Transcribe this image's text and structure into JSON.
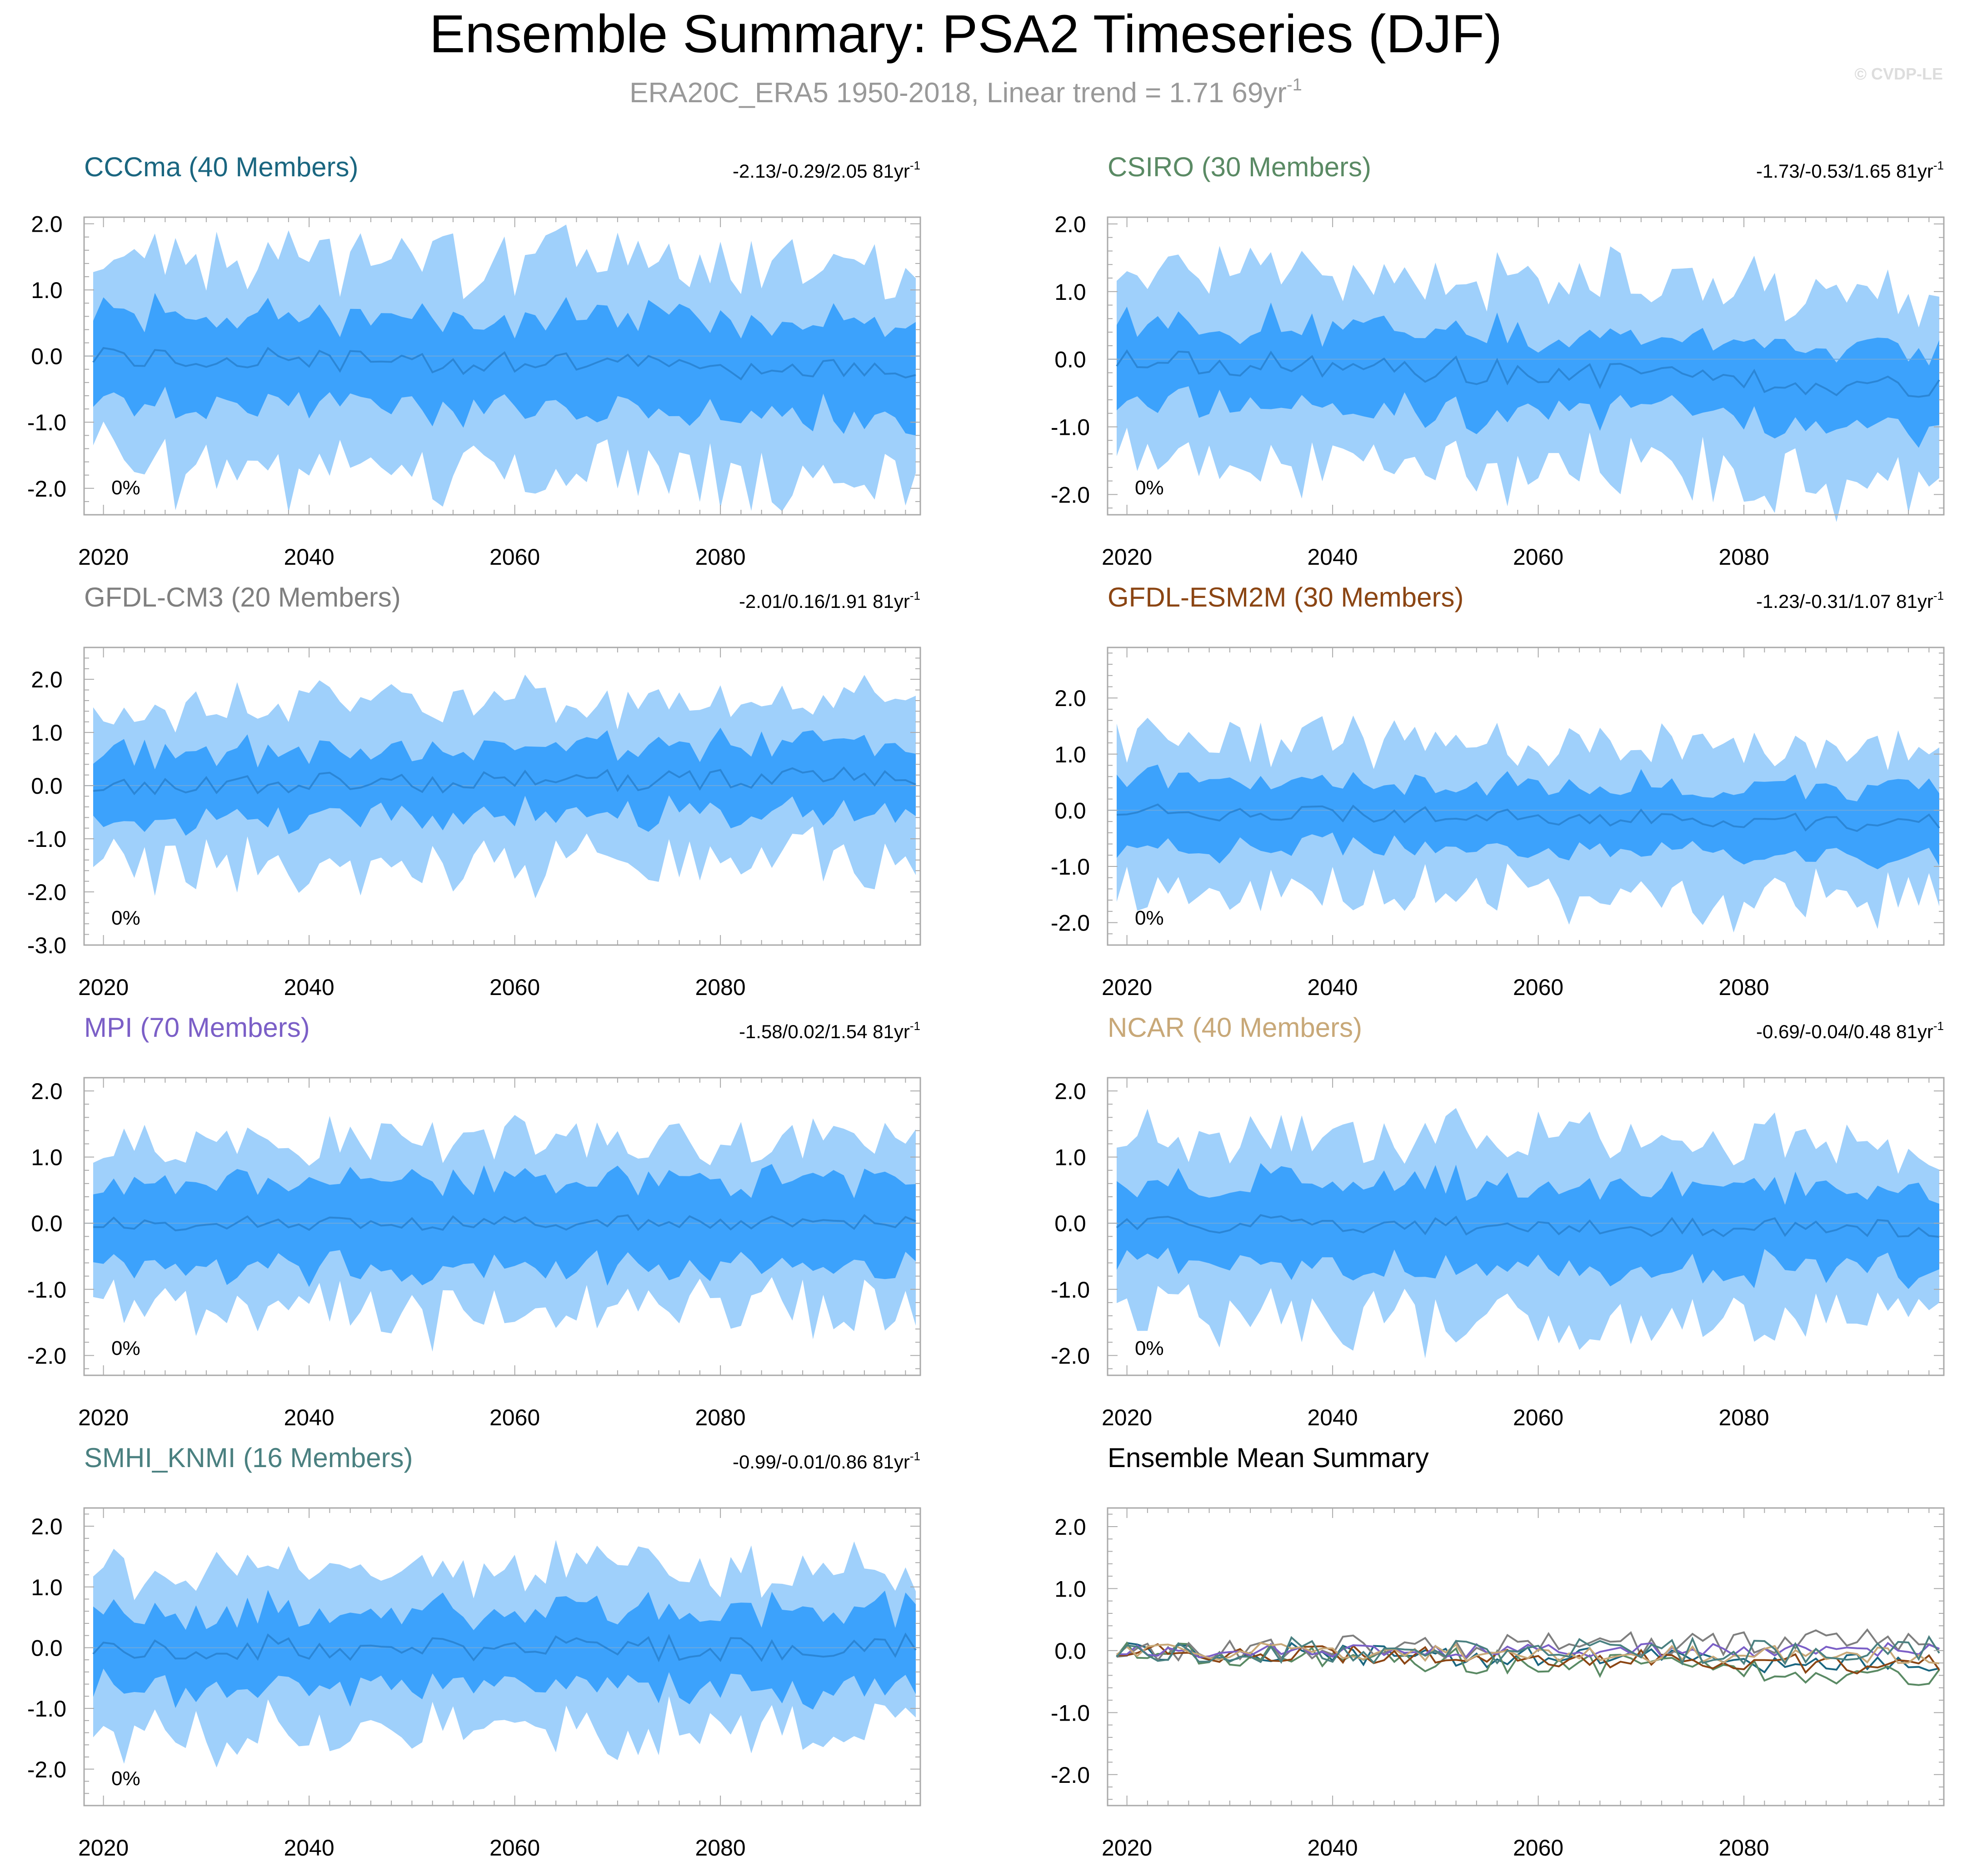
{
  "header": {
    "title": "Ensemble Summary: PSA2 Timeseries (DJF)",
    "subtitle_main": "ERA20C_ERA5 1950-2018, Linear trend = 1.71 69yr",
    "subtitle_sup": "-1",
    "copyright": "© CVDP-LE"
  },
  "colors": {
    "outer_band": "#9fd0fb",
    "inner_band": "#3ca2fc",
    "mean_line": "#2b86d6",
    "frame": "#aaaaaa",
    "text": "#000000"
  },
  "panels": [
    {
      "id": "CCCma",
      "title": "CCCma (40 Members)",
      "title_color": "#1a6680",
      "trend": "-2.13/-0.29/2.05 81yr",
      "trend_sup": "-1",
      "pct": "0%",
      "ylim": [
        -2.4,
        2.1
      ],
      "yticks": [
        "2.0",
        "1.0",
        "0.0",
        "-1.0",
        "-2.0"
      ],
      "ytick_values": [
        2,
        1,
        0,
        -1,
        -2
      ],
      "seed": 11,
      "out": 1.6,
      "inn": 0.7,
      "mean_amp": 0.18,
      "trend_slope": -0.003
    },
    {
      "id": "CSIRO",
      "title": "CSIRO (30 Members)",
      "title_color": "#5a8a64",
      "trend": "-1.73/-0.53/1.65 81yr",
      "trend_sup": "-1",
      "pct": "0%",
      "ylim": [
        -2.3,
        2.1
      ],
      "yticks": [
        "2.0",
        "1.0",
        "0.0",
        "-1.0",
        "-2.0"
      ],
      "ytick_values": [
        2,
        1,
        0,
        -1,
        -2
      ],
      "seed": 23,
      "out": 1.4,
      "inn": 0.6,
      "mean_amp": 0.2,
      "trend_slope": -0.005
    },
    {
      "id": "GFDL-CM3",
      "title": "GFDL-CM3 (20 Members)",
      "title_color": "#7f7f7f",
      "trend": "-2.01/0.16/1.91 81yr",
      "trend_sup": "-1",
      "pct": "0%",
      "ylim": [
        -3.0,
        2.6
      ],
      "yticks": [
        "2.0",
        "1.0",
        "0.0",
        "-1.0",
        "-2.0",
        "-3.0"
      ],
      "ytick_values": [
        2,
        1,
        0,
        -1,
        -2,
        -3
      ],
      "seed": 37,
      "out": 1.5,
      "inn": 0.65,
      "mean_amp": 0.2,
      "trend_slope": 0.002
    },
    {
      "id": "GFDL-ESM2M",
      "title": "GFDL-ESM2M (30 Members)",
      "title_color": "#8b4513",
      "trend": "-1.23/-0.31/1.07 81yr",
      "trend_sup": "-1",
      "pct": "0%",
      "ylim": [
        -2.4,
        2.9
      ],
      "yticks": [
        "2.0",
        "1.0",
        "0.0",
        "-1.0",
        "-2.0"
      ],
      "ytick_values": [
        2,
        1,
        0,
        -1,
        -2
      ],
      "seed": 41,
      "out": 1.3,
      "inn": 0.6,
      "mean_amp": 0.16,
      "trend_slope": -0.003
    },
    {
      "id": "MPI",
      "title": "MPI (70 Members)",
      "title_color": "#7b5fc7",
      "trend": "-1.58/0.02/1.54 81yr",
      "trend_sup": "-1",
      "pct": "0%",
      "ylim": [
        -2.3,
        2.2
      ],
      "yticks": [
        "2.0",
        "1.0",
        "0.0",
        "-1.0",
        "-2.0"
      ],
      "ytick_values": [
        2,
        1,
        0,
        -1,
        -2
      ],
      "seed": 53,
      "out": 1.3,
      "inn": 0.65,
      "mean_amp": 0.12,
      "trend_slope": 0.0
    },
    {
      "id": "NCAR",
      "title": "NCAR (40 Members)",
      "title_color": "#c8a878",
      "trend": "-0.69/-0.04/0.48 81yr",
      "trend_sup": "-1",
      "pct": "0%",
      "ylim": [
        -2.3,
        2.2
      ],
      "yticks": [
        "2.0",
        "1.0",
        "0.0",
        "-1.0",
        "-2.0"
      ],
      "ytick_values": [
        2,
        1,
        0,
        -1,
        -2
      ],
      "seed": 67,
      "out": 1.35,
      "inn": 0.65,
      "mean_amp": 0.14,
      "trend_slope": -0.001
    },
    {
      "id": "SMHI_KNMI",
      "title": "SMHI_KNMI (16 Members)",
      "title_color": "#4a8080",
      "trend": "-0.99/-0.01/0.86 81yr",
      "trend_sup": "-1",
      "pct": "0%",
      "ylim": [
        -2.6,
        2.3
      ],
      "yticks": [
        "2.0",
        "1.0",
        "0.0",
        "-1.0",
        "-2.0"
      ],
      "ytick_values": [
        2,
        1,
        0,
        -1,
        -2
      ],
      "seed": 79,
      "out": 1.35,
      "inn": 0.65,
      "mean_amp": 0.22,
      "trend_slope": 0.0
    }
  ],
  "summary": {
    "title": "Ensemble Mean Summary",
    "ylim": [
      -2.5,
      2.3
    ],
    "yticks": [
      "2.0",
      "1.0",
      "0.0",
      "-1.0",
      "-2.0"
    ],
    "ytick_values": [
      2,
      1,
      0,
      -1,
      -2
    ],
    "series_colors": [
      "#1a6680",
      "#5a8a64",
      "#7f7f7f",
      "#8b4513",
      "#7b5fc7",
      "#c8a878",
      "#4a8080"
    ]
  },
  "chart_data": {
    "type": "area",
    "title": "Ensemble Summary: PSA2 Timeseries (DJF)",
    "x": {
      "start": 2019,
      "end": 2099,
      "step": 1
    },
    "xticks": [
      "2020",
      "2040",
      "2060",
      "2080"
    ],
    "xtick_values": [
      2020,
      2040,
      2060,
      2080
    ],
    "series_description": "Per-model 10-90% (light) and 25-75% (dark) ensemble spread bands with ensemble mean line; bottom-right panel overlays all ensemble means"
  }
}
